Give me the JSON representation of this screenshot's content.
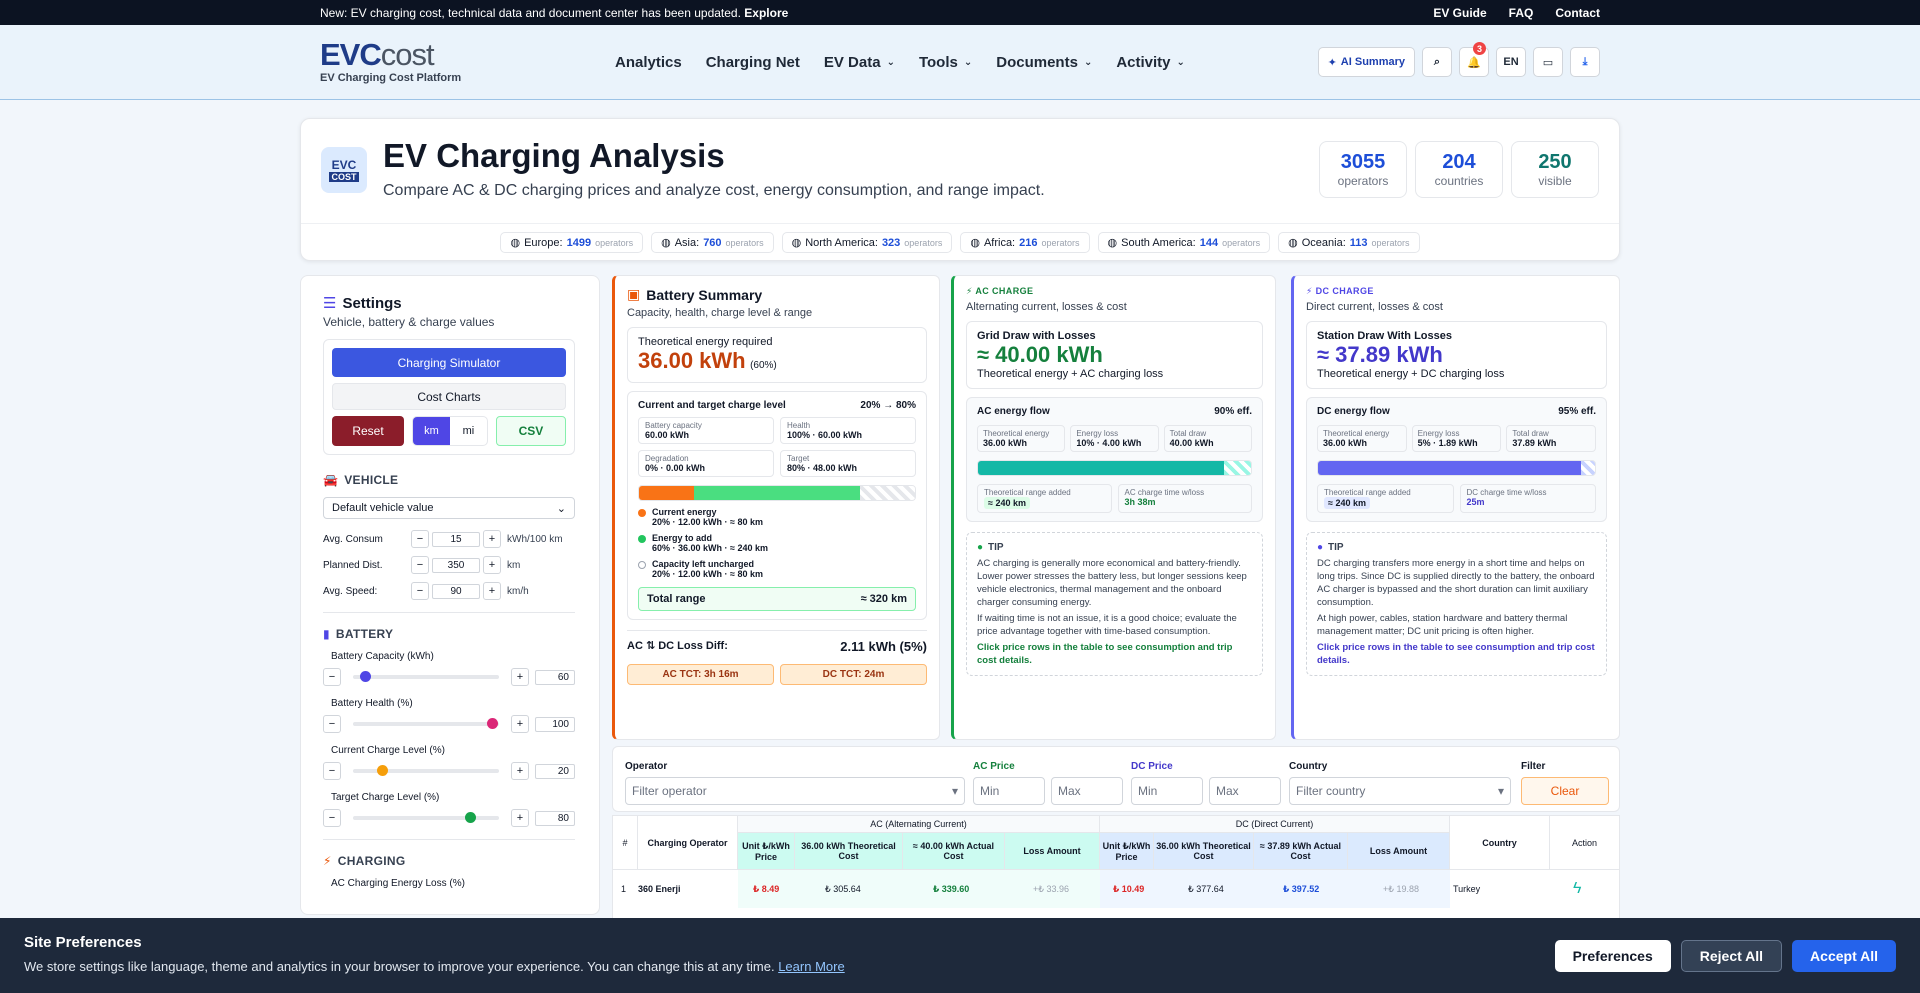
{
  "topbar": {
    "notice": "New: EV charging cost, technical data and document center has been updated.",
    "explore": "Explore",
    "links": [
      "EV Guide",
      "FAQ",
      "Contact"
    ]
  },
  "header": {
    "logo_main": "EVC",
    "logo_sub_word": "cost",
    "logo_tag": "EV Charging Cost Platform",
    "nav": [
      "Analytics",
      "Charging Net",
      "EV Data",
      "Tools",
      "Documents",
      "Activity"
    ],
    "ai_label": "AI Summary",
    "notif_count": "3",
    "lang": "EN"
  },
  "hero": {
    "icon_top": "EVC",
    "icon_bottom": "COST",
    "title": "EV Charging Analysis",
    "subtitle": "Compare AC & DC charging prices and analyze cost, energy consumption, and range impact.",
    "stats": [
      {
        "value": "3055",
        "label": "operators"
      },
      {
        "value": "204",
        "label": "countries"
      },
      {
        "value": "250",
        "label": "visible"
      }
    ],
    "regions": [
      {
        "name": "Europe:",
        "value": "1499",
        "unit": "operators"
      },
      {
        "name": "Asia:",
        "value": "760",
        "unit": "operators"
      },
      {
        "name": "North America:",
        "value": "323",
        "unit": "operators"
      },
      {
        "name": "Africa:",
        "value": "216",
        "unit": "operators"
      },
      {
        "name": "South America:",
        "value": "144",
        "unit": "operators"
      },
      {
        "name": "Oceania:",
        "value": "113",
        "unit": "operators"
      }
    ]
  },
  "settings": {
    "title": "Settings",
    "subtitle": "Vehicle, battery & charge values",
    "sim": "Charging Simulator",
    "charts": "Cost Charts",
    "reset": "Reset",
    "km": "km",
    "mi": "mi",
    "csv": "CSV",
    "vehicle_h": "VEHICLE",
    "vehicle_sel": "Default vehicle value",
    "inputs": [
      {
        "label": "Avg. Consum",
        "value": "15",
        "unit": "kWh/100 km"
      },
      {
        "label": "Planned Dist.",
        "value": "350",
        "unit": "km"
      },
      {
        "label": "Avg. Speed:",
        "value": "90",
        "unit": "km/h"
      }
    ],
    "battery_h": "BATTERY",
    "sliders": [
      {
        "label": "Battery Capacity (kWh)",
        "value": "60",
        "pos": 0.08,
        "color": "#4f46e5"
      },
      {
        "label": "Battery Health (%)",
        "value": "100",
        "pos": 0.95,
        "color": "#db2777"
      },
      {
        "label": "Current Charge Level (%)",
        "value": "20",
        "pos": 0.2,
        "color": "#f59e0b"
      },
      {
        "label": "Target Charge Level (%)",
        "value": "80",
        "pos": 0.8,
        "color": "#16a34a"
      }
    ],
    "charging_h": "CHARGING",
    "ac_loss": "AC Charging Energy Loss (%)"
  },
  "battery": {
    "title": "Battery Summary",
    "subtitle": "Capacity, health, charge level & range",
    "req_label": "Theoretical energy required",
    "req_value": "36.00 kWh",
    "req_pct": "(60%)",
    "level_label": "Current and target charge level",
    "level_range": "20% → 80%",
    "mini": [
      {
        "k": "Battery capacity",
        "v": "60.00 kWh"
      },
      {
        "k": "Health",
        "v": "100% · 60.00 kWh"
      },
      {
        "k": "Degradation",
        "v": "0% · 0.00 kWh"
      },
      {
        "k": "Target",
        "v": "80% · 48.00 kWh"
      }
    ],
    "legend": [
      {
        "t": "Current energy",
        "d": "20% · 12.00 kWh · ≈ 80 km",
        "c": "#f97316"
      },
      {
        "t": "Energy to add",
        "d": "60% · 36.00 kWh · ≈ 240 km",
        "c": "#22c55e"
      },
      {
        "t": "Capacity left uncharged",
        "d": "20% · 12.00 kWh · ≈ 80 km",
        "c": "#d1d5db"
      }
    ],
    "total_label": "Total range",
    "total_value": "≈ 320 km",
    "diff_label": "AC ⇅ DC Loss Diff:",
    "diff_value": "2.11 kWh (5%)",
    "ac_tct": "AC   TCT: 3h 16m",
    "dc_tct": "DC   TCT: 24m"
  },
  "ac": {
    "tag": "AC CHARGE",
    "subtitle": "Alternating current, losses & cost",
    "draw_label": "Grid Draw with Losses",
    "draw_value": "≈ 40.00 kWh",
    "draw_sub": "Theoretical energy + AC charging loss",
    "flow_label": "AC energy flow",
    "eff": "90% eff.",
    "mini": [
      {
        "k": "Theoretical energy",
        "v": "36.00 kWh"
      },
      {
        "k": "Energy loss",
        "v": "10% · 4.00 kWh"
      },
      {
        "k": "Total draw",
        "v": "40.00 kWh"
      }
    ],
    "range_label": "Theoretical range added",
    "range_value": "≈ 240 km",
    "time_label": "AC charge time w/loss",
    "time_value": "3h 38m",
    "fill": 0.9,
    "tip_title": "TIP",
    "tip1": "AC charging is generally more economical and battery-friendly. Lower power stresses the battery less, but longer sessions keep vehicle electronics, thermal management and the onboard charger consuming energy.",
    "tip2": "If waiting time is not an issue, it is a good choice; evaluate the price advantage together with time-based consumption.",
    "tip3": "Click price rows in the table to see consumption and trip cost details."
  },
  "dc": {
    "tag": "DC CHARGE",
    "subtitle": "Direct current, losses & cost",
    "draw_label": "Station Draw With Losses",
    "draw_value": "≈ 37.89 kWh",
    "draw_sub": "Theoretical energy + DC charging loss",
    "flow_label": "DC energy flow",
    "eff": "95% eff.",
    "mini": [
      {
        "k": "Theoretical energy",
        "v": "36.00 kWh"
      },
      {
        "k": "Energy loss",
        "v": "5% · 1.89 kWh"
      },
      {
        "k": "Total draw",
        "v": "37.89 kWh"
      }
    ],
    "range_label": "Theoretical range added",
    "range_value": "≈ 240 km",
    "time_label": "DC charge time w/loss",
    "time_value": "25m",
    "fill": 0.95,
    "tip_title": "TIP",
    "tip1": "DC charging transfers more energy in a short time and helps on long trips. Since DC is supplied directly to the battery, the onboard AC charger is bypassed and the short duration can limit auxiliary consumption.",
    "tip2": "At high power, cables, station hardware and battery thermal management matter; DC unit pricing is often higher.",
    "tip3": "Click price rows in the table to see consumption and trip cost details."
  },
  "filters": {
    "operator": "Operator",
    "operator_ph": "Filter operator",
    "ac_price": "AC Price",
    "dc_price": "DC Price",
    "min": "Min",
    "max": "Max",
    "country": "Country",
    "country_ph": "Filter country",
    "filter": "Filter",
    "clear": "Clear"
  },
  "table": {
    "num": "#",
    "op": "Charging Operator",
    "ac_group": "AC (Alternating Current)",
    "dc_group": "DC (Direct Current)",
    "unit": "Unit ₺/kWh Price",
    "theo": "36.00 kWh Theoretical Cost",
    "ac_actual": "≈ 40.00 kWh Actual Cost",
    "dc_actual": "≈ 37.89 kWh Actual Cost",
    "loss": "Loss Amount",
    "country": "Country",
    "action": "Action",
    "rows": [
      {
        "n": "1",
        "op": "360 Enerji",
        "cc": "TR",
        "ac_unit": "₺ 8.49",
        "ac_theo": "₺ 305.64",
        "ac_act": "₺ 339.60",
        "ac_loss": "+₺ 33.96",
        "dc_unit": "₺ 10.49",
        "dc_theo": "₺ 377.64",
        "dc_act": "₺ 397.52",
        "dc_loss": "+₺ 19.88",
        "country": "Turkey"
      }
    ]
  },
  "cookie": {
    "title": "Site Preferences",
    "desc": "We store settings like language, theme and analytics in your browser to improve your experience. You can change this at any time.",
    "learn": "Learn More",
    "prefs": "Preferences",
    "reject": "Reject All",
    "accept": "Accept All"
  }
}
